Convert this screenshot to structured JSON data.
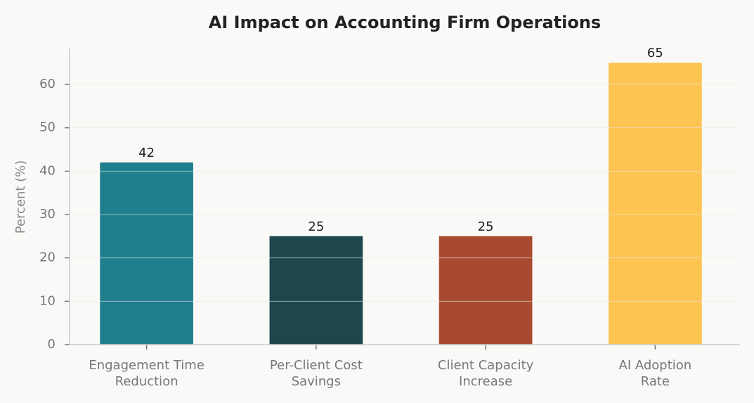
{
  "chart_data": {
    "type": "bar",
    "title": "AI Impact on Accounting Firm Operations",
    "y_label": "Percent (%)",
    "categories": [
      "Engagement Time\nReduction",
      "Per-Client Cost\nSavings",
      "Client Capacity\nIncrease",
      "AI Adoption\nRate"
    ],
    "values": [
      42,
      25,
      25,
      65
    ],
    "colors": [
      "#1f7f8c",
      "#1d474d",
      "#a84a2f",
      "#fec452"
    ],
    "ylim": [
      0,
      68.3
    ],
    "yticks": [
      0,
      10,
      20,
      30,
      40,
      50,
      60
    ],
    "grid": true
  }
}
